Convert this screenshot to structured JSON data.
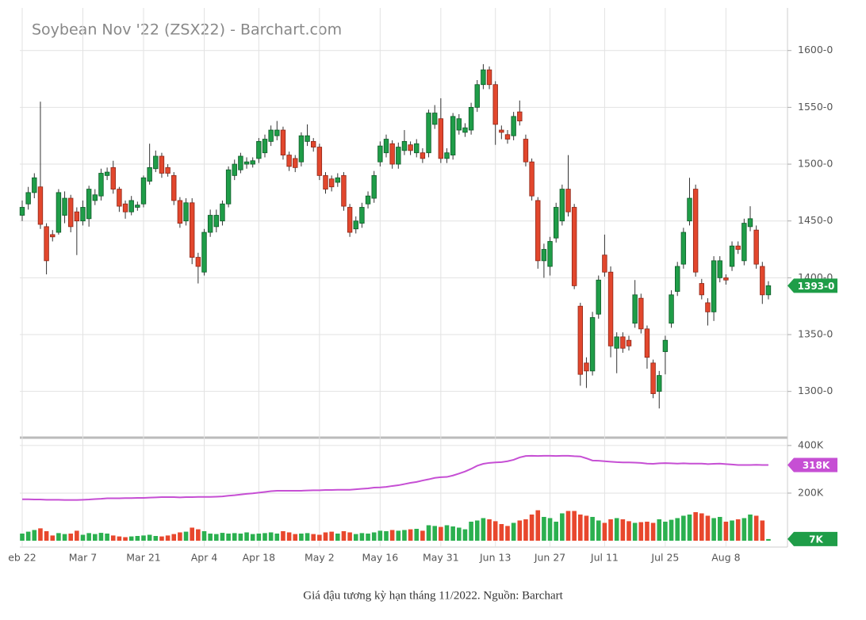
{
  "chart_data": {
    "type": "candlestick",
    "title": "Soybean Nov '22 (ZSX22) - Barchart.com",
    "caption": "Giá đậu tương kỳ hạn tháng 11/2022. Nguồn: Barchart",
    "categories": [
      "eb 22",
      null,
      null,
      null,
      null,
      null,
      null,
      null,
      null,
      null,
      "Mar 7",
      null,
      null,
      null,
      null,
      null,
      null,
      null,
      null,
      null,
      "Mar 21",
      null,
      null,
      null,
      null,
      null,
      null,
      null,
      null,
      null,
      "Apr 4",
      null,
      null,
      null,
      null,
      null,
      null,
      null,
      null,
      "Apr 18",
      null,
      null,
      null,
      null,
      null,
      null,
      null,
      null,
      null,
      "May 2",
      null,
      null,
      null,
      null,
      null,
      null,
      null,
      null,
      null,
      "May 16",
      null,
      null,
      null,
      null,
      null,
      null,
      null,
      null,
      null,
      "May 31",
      null,
      null,
      null,
      null,
      null,
      null,
      null,
      null,
      "Jun 13",
      null,
      null,
      null,
      null,
      null,
      null,
      null,
      null,
      "Jun 27",
      null,
      null,
      null,
      null,
      null,
      null,
      null,
      null,
      "Jul 11",
      null,
      null,
      null,
      null,
      null,
      null,
      null,
      null,
      null,
      "Jul 25",
      null,
      null,
      null,
      null,
      null,
      null,
      null,
      null,
      null,
      "Aug 8",
      null,
      null,
      null,
      null,
      null,
      null,
      null
    ],
    "open": [
      1455,
      1465,
      1475,
      1480,
      1445,
      1438,
      1440,
      1455,
      1470,
      1458,
      1450,
      1452,
      1468,
      1472,
      1490,
      1497,
      1478,
      1465,
      1458,
      1462,
      1465,
      1485,
      1496,
      1507,
      1497,
      1490,
      1468,
      1450,
      1466,
      1418,
      1405,
      1440,
      1445,
      1450,
      1465,
      1490,
      1495,
      1500,
      1500,
      1505,
      1510,
      1520,
      1525,
      1530,
      1508,
      1505,
      1502,
      1520,
      1520,
      1515,
      1490,
      1487,
      1484,
      1490,
      1462,
      1443,
      1448,
      1465,
      1470,
      1502,
      1510,
      1518,
      1500,
      1512,
      1517,
      1510,
      1510,
      1510,
      1535,
      1540,
      1505,
      1508,
      1530,
      1528,
      1530,
      1550,
      1570,
      1583,
      1570,
      1530,
      1526,
      1525,
      1546,
      1522,
      1502,
      1468,
      1415,
      1410,
      1435,
      1450,
      1478,
      1462,
      1375,
      1325,
      1318,
      1368,
      1420,
      1405,
      1338,
      1348,
      1345,
      1360,
      1382,
      1355,
      1325,
      1300,
      1335,
      1360,
      1388,
      1412,
      1450,
      1478,
      1395,
      1378,
      1370,
      1400,
      1400,
      1410,
      1428,
      1415,
      1445,
      1442,
      1410,
      1385
    ],
    "high": [
      1468,
      1480,
      1492,
      1555,
      1448,
      1442,
      1478,
      1476,
      1473,
      1462,
      1468,
      1481,
      1478,
      1496,
      1497,
      1503,
      1480,
      1468,
      1472,
      1467,
      1490,
      1518,
      1512,
      1510,
      1500,
      1493,
      1471,
      1470,
      1470,
      1422,
      1443,
      1460,
      1460,
      1468,
      1498,
      1504,
      1510,
      1506,
      1506,
      1523,
      1526,
      1534,
      1538,
      1533,
      1511,
      1508,
      1528,
      1535,
      1523,
      1518,
      1493,
      1490,
      1492,
      1493,
      1465,
      1454,
      1466,
      1476,
      1494,
      1520,
      1526,
      1521,
      1519,
      1530,
      1520,
      1522,
      1514,
      1548,
      1552,
      1558,
      1514,
      1545,
      1544,
      1536,
      1554,
      1574,
      1588,
      1586,
      1573,
      1534,
      1530,
      1546,
      1556,
      1526,
      1505,
      1471,
      1430,
      1436,
      1466,
      1482,
      1508,
      1465,
      1378,
      1330,
      1370,
      1402,
      1438,
      1410,
      1352,
      1352,
      1349,
      1398,
      1386,
      1358,
      1328,
      1318,
      1349,
      1389,
      1414,
      1444,
      1488,
      1482,
      1399,
      1382,
      1419,
      1419,
      1403,
      1432,
      1432,
      1452,
      1463,
      1446,
      1414,
      1397
    ],
    "low": [
      1450,
      1460,
      1470,
      1443,
      1403,
      1432,
      1438,
      1448,
      1440,
      1420,
      1446,
      1445,
      1464,
      1468,
      1486,
      1474,
      1458,
      1452,
      1455,
      1459,
      1462,
      1482,
      1493,
      1488,
      1489,
      1464,
      1444,
      1446,
      1412,
      1395,
      1402,
      1436,
      1440,
      1446,
      1462,
      1486,
      1492,
      1496,
      1497,
      1501,
      1506,
      1516,
      1521,
      1504,
      1494,
      1493,
      1498,
      1516,
      1511,
      1486,
      1474,
      1476,
      1480,
      1459,
      1436,
      1439,
      1444,
      1461,
      1466,
      1498,
      1506,
      1496,
      1496,
      1508,
      1508,
      1506,
      1501,
      1506,
      1531,
      1501,
      1501,
      1504,
      1526,
      1524,
      1526,
      1546,
      1566,
      1566,
      1517,
      1522,
      1518,
      1521,
      1534,
      1498,
      1468,
      1408,
      1400,
      1402,
      1431,
      1446,
      1454,
      1390,
      1305,
      1303,
      1314,
      1364,
      1401,
      1330,
      1316,
      1334,
      1336,
      1356,
      1351,
      1320,
      1294,
      1285,
      1315,
      1356,
      1384,
      1408,
      1446,
      1401,
      1381,
      1358,
      1362,
      1396,
      1394,
      1406,
      1421,
      1411,
      1441,
      1408,
      1377,
      1381
    ],
    "close": [
      1462,
      1475,
      1488,
      1447,
      1415,
      1436,
      1475,
      1470,
      1445,
      1450,
      1462,
      1478,
      1473,
      1492,
      1493,
      1478,
      1463,
      1458,
      1468,
      1464,
      1488,
      1497,
      1507,
      1492,
      1492,
      1468,
      1448,
      1466,
      1418,
      1410,
      1440,
      1455,
      1455,
      1465,
      1495,
      1500,
      1507,
      1502,
      1503,
      1520,
      1522,
      1530,
      1530,
      1508,
      1498,
      1497,
      1525,
      1525,
      1515,
      1490,
      1478,
      1480,
      1488,
      1463,
      1440,
      1450,
      1462,
      1472,
      1490,
      1516,
      1522,
      1500,
      1515,
      1520,
      1512,
      1518,
      1505,
      1545,
      1545,
      1505,
      1510,
      1542,
      1540,
      1532,
      1550,
      1570,
      1583,
      1570,
      1535,
      1528,
      1522,
      1542,
      1538,
      1502,
      1472,
      1415,
      1425,
      1432,
      1462,
      1478,
      1458,
      1393,
      1315,
      1318,
      1365,
      1398,
      1405,
      1340,
      1348,
      1338,
      1340,
      1385,
      1355,
      1330,
      1298,
      1314,
      1345,
      1385,
      1410,
      1440,
      1470,
      1405,
      1385,
      1370,
      1415,
      1415,
      1398,
      1428,
      1425,
      1448,
      1452,
      1412,
      1385,
      1393
    ],
    "up_color": "#1f9d48",
    "down_color": "#e2472d",
    "ylim": [
      1260,
      1634
    ],
    "yticks": [
      {
        "value": 1300,
        "label": "1300-0"
      },
      {
        "value": 1350,
        "label": "1350-0"
      },
      {
        "value": 1400,
        "label": "1400-0"
      },
      {
        "value": 1450,
        "label": "1450-0"
      },
      {
        "value": 1500,
        "label": "1500-0"
      },
      {
        "value": 1550,
        "label": "1550-0"
      },
      {
        "value": 1600,
        "label": "1600-0"
      }
    ],
    "last_label": "1393-0",
    "grid": true,
    "volume": {
      "values": [
        30000,
        38000,
        45000,
        52000,
        40000,
        22000,
        32000,
        28000,
        30000,
        42000,
        25000,
        32000,
        28000,
        33000,
        30000,
        22000,
        18000,
        15000,
        18000,
        20000,
        22000,
        25000,
        20000,
        18000,
        22000,
        28000,
        35000,
        38000,
        55000,
        48000,
        40000,
        30000,
        28000,
        33000,
        30000,
        32000,
        30000,
        35000,
        28000,
        30000,
        32000,
        35000,
        30000,
        40000,
        35000,
        28000,
        30000,
        32000,
        28000,
        25000,
        35000,
        38000,
        30000,
        40000,
        35000,
        28000,
        32000,
        30000,
        35000,
        42000,
        40000,
        45000,
        42000,
        45000,
        48000,
        50000,
        42000,
        65000,
        62000,
        58000,
        65000,
        60000,
        55000,
        48000,
        80000,
        85000,
        95000,
        90000,
        82000,
        70000,
        62000,
        75000,
        85000,
        90000,
        110000,
        128000,
        100000,
        95000,
        80000,
        115000,
        125000,
        125000,
        110000,
        105000,
        100000,
        85000,
        75000,
        90000,
        95000,
        90000,
        82000,
        75000,
        78000,
        80000,
        75000,
        90000,
        80000,
        88000,
        95000,
        105000,
        110000,
        120000,
        115000,
        105000,
        95000,
        100000,
        80000,
        85000,
        90000,
        95000,
        110000,
        105000,
        85000,
        7000
      ],
      "ylim": [
        0,
        423000
      ],
      "yticks": [
        {
          "value": 200000,
          "label": "200K"
        },
        {
          "value": 400000,
          "label": "400K"
        }
      ],
      "last_label": "7K"
    },
    "open_interest": {
      "color": "#c64fd4",
      "values": [
        174000,
        174000,
        173000,
        173000,
        172000,
        172000,
        172000,
        171000,
        171000,
        171000,
        172000,
        173000,
        175000,
        176000,
        178000,
        178000,
        178000,
        179000,
        179000,
        180000,
        180000,
        181000,
        182000,
        183000,
        183000,
        183000,
        182000,
        183000,
        183000,
        184000,
        184000,
        184000,
        185000,
        186000,
        189000,
        191000,
        194000,
        197000,
        199000,
        202000,
        205000,
        208000,
        210000,
        210000,
        210000,
        210000,
        210000,
        211000,
        212000,
        212000,
        213000,
        213000,
        214000,
        214000,
        214000,
        216000,
        218000,
        220000,
        223000,
        224000,
        226000,
        230000,
        233000,
        238000,
        243000,
        247000,
        253000,
        258000,
        264000,
        267000,
        268000,
        274000,
        282000,
        291000,
        302000,
        315000,
        323000,
        327000,
        329000,
        330000,
        334000,
        340000,
        350000,
        356000,
        357000,
        356000,
        357000,
        357000,
        356000,
        357000,
        357000,
        355000,
        354000,
        346000,
        337000,
        336000,
        334000,
        332000,
        330000,
        329000,
        329000,
        328000,
        327000,
        324000,
        323000,
        325000,
        326000,
        325000,
        324000,
        325000,
        324000,
        324000,
        324000,
        322000,
        323000,
        324000,
        322000,
        320000,
        318000,
        318000,
        318000,
        319000,
        318000,
        318000
      ],
      "last_label": "318K"
    }
  }
}
